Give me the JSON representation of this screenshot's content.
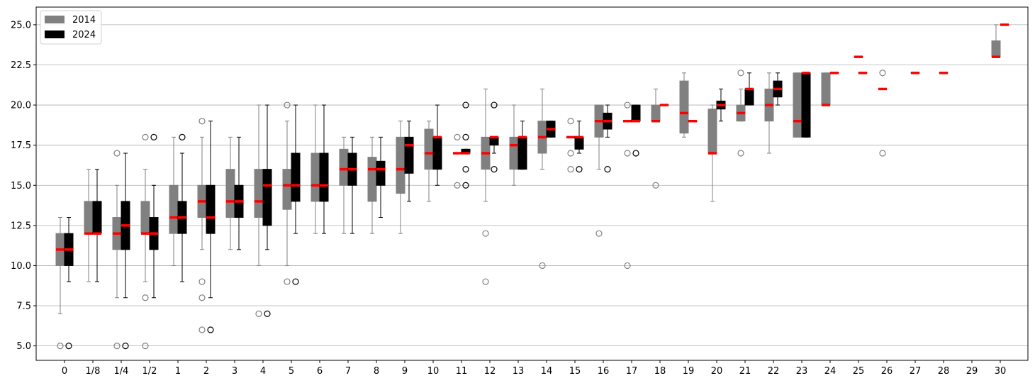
{
  "chart_data": {
    "type": "box",
    "categories": [
      "0",
      "1/8",
      "1/4",
      "1/2",
      "1",
      "2",
      "3",
      "4",
      "5",
      "6",
      "7",
      "8",
      "9",
      "10",
      "11",
      "12",
      "13",
      "14",
      "15",
      "16",
      "17",
      "18",
      "19",
      "20",
      "21",
      "22",
      "23",
      "24",
      "25",
      "26",
      "27",
      "28",
      "29",
      "30"
    ],
    "title": "",
    "xlabel": "",
    "ylabel": "",
    "ylim": [
      4.1,
      26.1
    ],
    "yticks": [
      5.0,
      7.5,
      10.0,
      12.5,
      15.0,
      17.5,
      20.0,
      22.5,
      25.0
    ],
    "grid": "horizontal",
    "legend_position": "top-left",
    "median_color": "#ff0000",
    "series": [
      {
        "name": "2014",
        "color": "#808080",
        "boxes": [
          {
            "cat": "0",
            "whislo": 7,
            "q1": 10,
            "med": 11,
            "q3": 12,
            "whishi": 13,
            "fliers": [
              5
            ]
          },
          {
            "cat": "1/8",
            "whislo": 9,
            "q1": 12,
            "med": 12,
            "q3": 14,
            "whishi": 16,
            "fliers": []
          },
          {
            "cat": "1/4",
            "whislo": 8,
            "q1": 11,
            "med": 12,
            "q3": 13,
            "whishi": 15,
            "fliers": [
              5,
              17
            ]
          },
          {
            "cat": "1/2",
            "whislo": 9,
            "q1": 12,
            "med": 12,
            "q3": 14,
            "whishi": 16,
            "fliers": [
              5,
              8,
              18
            ]
          },
          {
            "cat": "1",
            "whislo": 10,
            "q1": 12,
            "med": 13,
            "q3": 15,
            "whishi": 18,
            "fliers": []
          },
          {
            "cat": "2",
            "whislo": 11,
            "q1": 13,
            "med": 14,
            "q3": 15,
            "whishi": 18,
            "fliers": [
              6,
              8,
              9,
              19
            ]
          },
          {
            "cat": "3",
            "whislo": 11,
            "q1": 13,
            "med": 14,
            "q3": 16,
            "whishi": 18,
            "fliers": []
          },
          {
            "cat": "4",
            "whislo": 10,
            "q1": 13,
            "med": 14,
            "q3": 16,
            "whishi": 20,
            "fliers": [
              7
            ]
          },
          {
            "cat": "5",
            "whislo": 10,
            "q1": 13.5,
            "med": 15,
            "q3": 16,
            "whishi": 19,
            "fliers": [
              9,
              20
            ]
          },
          {
            "cat": "6",
            "whislo": 12,
            "q1": 14,
            "med": 15,
            "q3": 17,
            "whishi": 20,
            "fliers": []
          },
          {
            "cat": "7",
            "whislo": 12,
            "q1": 15,
            "med": 16,
            "q3": 17.25,
            "whishi": 18,
            "fliers": []
          },
          {
            "cat": "8",
            "whislo": 12,
            "q1": 14,
            "med": 16,
            "q3": 16.75,
            "whishi": 18,
            "fliers": []
          },
          {
            "cat": "9",
            "whislo": 12,
            "q1": 14.5,
            "med": 16,
            "q3": 18,
            "whishi": 19,
            "fliers": []
          },
          {
            "cat": "10",
            "whislo": 14,
            "q1": 16,
            "med": 17,
            "q3": 18.5,
            "whishi": 19,
            "fliers": []
          },
          {
            "cat": "11",
            "whislo": 17,
            "q1": 17,
            "med": 17,
            "q3": 17,
            "whishi": 17,
            "fliers": [
              15,
              18
            ]
          },
          {
            "cat": "12",
            "whislo": 14,
            "q1": 16,
            "med": 17,
            "q3": 18,
            "whishi": 21,
            "fliers": [
              9,
              12
            ]
          },
          {
            "cat": "13",
            "whislo": 15,
            "q1": 16,
            "med": 17.5,
            "q3": 18,
            "whishi": 20,
            "fliers": []
          },
          {
            "cat": "14",
            "whislo": 16,
            "q1": 17,
            "med": 18,
            "q3": 19,
            "whishi": 21,
            "fliers": [
              10
            ]
          },
          {
            "cat": "15",
            "whislo": 18,
            "q1": 18,
            "med": 18,
            "q3": 18,
            "whishi": 18,
            "fliers": [
              16,
              17,
              19
            ]
          },
          {
            "cat": "16",
            "whislo": 16,
            "q1": 18,
            "med": 19,
            "q3": 20,
            "whishi": 20,
            "fliers": [
              12
            ]
          },
          {
            "cat": "17",
            "whislo": 19,
            "q1": 19,
            "med": 19,
            "q3": 19,
            "whishi": 19,
            "fliers": [
              10,
              17,
              20
            ]
          },
          {
            "cat": "18",
            "whislo": 19,
            "q1": 19,
            "med": 19,
            "q3": 20,
            "whishi": 21,
            "fliers": [
              15
            ]
          },
          {
            "cat": "19",
            "whislo": 18,
            "q1": 18.25,
            "med": 19.5,
            "q3": 21.5,
            "whishi": 22,
            "fliers": []
          },
          {
            "cat": "20",
            "whislo": 14,
            "q1": 17,
            "med": 17,
            "q3": 19.75,
            "whishi": 20,
            "fliers": []
          },
          {
            "cat": "21",
            "whislo": 19,
            "q1": 19,
            "med": 19.5,
            "q3": 20,
            "whishi": 21,
            "fliers": [
              17,
              22
            ]
          },
          {
            "cat": "22",
            "whislo": 17,
            "q1": 19,
            "med": 20,
            "q3": 21,
            "whishi": 22,
            "fliers": []
          },
          {
            "cat": "23",
            "whislo": 18,
            "q1": 18,
            "med": 19,
            "q3": 22,
            "whishi": 22,
            "fliers": []
          },
          {
            "cat": "24",
            "whislo": 20,
            "q1": 20,
            "med": 20,
            "q3": 22,
            "whishi": 22,
            "fliers": []
          },
          {
            "cat": "26",
            "whislo": 21,
            "q1": 21,
            "med": 21,
            "q3": 21,
            "whishi": 21,
            "fliers": [
              17,
              22
            ]
          },
          {
            "cat": "30",
            "whislo": 23,
            "q1": 23,
            "med": 23,
            "q3": 24,
            "whishi": 25,
            "fliers": []
          }
        ]
      },
      {
        "name": "2024",
        "color": "#000000",
        "boxes": [
          {
            "cat": "0",
            "whislo": 9,
            "q1": 10,
            "med": 11,
            "q3": 12,
            "whishi": 13,
            "fliers": [
              5
            ]
          },
          {
            "cat": "1/8",
            "whislo": 9,
            "q1": 12,
            "med": 12,
            "q3": 14,
            "whishi": 16,
            "fliers": []
          },
          {
            "cat": "1/4",
            "whislo": 8,
            "q1": 11,
            "med": 12.5,
            "q3": 14,
            "whishi": 17,
            "fliers": [
              5
            ]
          },
          {
            "cat": "1/2",
            "whislo": 8,
            "q1": 11,
            "med": 12,
            "q3": 13,
            "whishi": 15,
            "fliers": [
              18
            ]
          },
          {
            "cat": "1",
            "whislo": 9,
            "q1": 12,
            "med": 13,
            "q3": 14,
            "whishi": 17,
            "fliers": [
              18
            ]
          },
          {
            "cat": "2",
            "whislo": 8,
            "q1": 12,
            "med": 13,
            "q3": 15,
            "whishi": 19,
            "fliers": [
              6
            ]
          },
          {
            "cat": "3",
            "whislo": 11,
            "q1": 13,
            "med": 14,
            "q3": 15,
            "whishi": 18,
            "fliers": []
          },
          {
            "cat": "4",
            "whislo": 11,
            "q1": 12.5,
            "med": 15,
            "q3": 16,
            "whishi": 20,
            "fliers": [
              7
            ]
          },
          {
            "cat": "5",
            "whislo": 12,
            "q1": 14,
            "med": 15,
            "q3": 17,
            "whishi": 20,
            "fliers": [
              9
            ]
          },
          {
            "cat": "6",
            "whislo": 12,
            "q1": 14,
            "med": 15,
            "q3": 17,
            "whishi": 20,
            "fliers": []
          },
          {
            "cat": "7",
            "whislo": 12,
            "q1": 15,
            "med": 16,
            "q3": 17,
            "whishi": 18,
            "fliers": []
          },
          {
            "cat": "8",
            "whislo": 13,
            "q1": 15,
            "med": 16,
            "q3": 16.5,
            "whishi": 18,
            "fliers": []
          },
          {
            "cat": "9",
            "whislo": 14,
            "q1": 15.75,
            "med": 17.5,
            "q3": 18,
            "whishi": 19,
            "fliers": []
          },
          {
            "cat": "10",
            "whislo": 15,
            "q1": 16,
            "med": 18,
            "q3": 18,
            "whishi": 20,
            "fliers": []
          },
          {
            "cat": "11",
            "whislo": 17,
            "q1": 17,
            "med": 17,
            "q3": 17.25,
            "whishi": 17.25,
            "fliers": [
              15,
              16,
              18,
              20
            ]
          },
          {
            "cat": "12",
            "whislo": 17,
            "q1": 17.5,
            "med": 18,
            "q3": 18,
            "whishi": 18,
            "fliers": [
              16,
              20
            ]
          },
          {
            "cat": "13",
            "whislo": 16,
            "q1": 16,
            "med": 18,
            "q3": 18,
            "whishi": 19,
            "fliers": []
          },
          {
            "cat": "14",
            "whislo": 18,
            "q1": 18,
            "med": 18.5,
            "q3": 19,
            "whishi": 19,
            "fliers": []
          },
          {
            "cat": "15",
            "whislo": 17,
            "q1": 17.25,
            "med": 18,
            "q3": 18,
            "whishi": 19,
            "fliers": [
              16
            ]
          },
          {
            "cat": "16",
            "whislo": 18,
            "q1": 18.5,
            "med": 19,
            "q3": 19.5,
            "whishi": 20,
            "fliers": [
              16
            ]
          },
          {
            "cat": "17",
            "whislo": 19,
            "q1": 19,
            "med": 19,
            "q3": 20,
            "whishi": 20,
            "fliers": [
              17
            ]
          },
          {
            "cat": "18",
            "whislo": 20,
            "q1": 20,
            "med": 20,
            "q3": 20,
            "whishi": 20,
            "fliers": []
          },
          {
            "cat": "19",
            "whislo": 19,
            "q1": 19,
            "med": 19,
            "q3": 19,
            "whishi": 19,
            "fliers": []
          },
          {
            "cat": "20",
            "whislo": 19,
            "q1": 19.75,
            "med": 20,
            "q3": 20.25,
            "whishi": 21,
            "fliers": []
          },
          {
            "cat": "21",
            "whislo": 20,
            "q1": 20,
            "med": 21,
            "q3": 21,
            "whishi": 22,
            "fliers": []
          },
          {
            "cat": "22",
            "whislo": 20,
            "q1": 20.5,
            "med": 21,
            "q3": 21.5,
            "whishi": 22,
            "fliers": []
          },
          {
            "cat": "23",
            "whislo": 18,
            "q1": 18,
            "med": 22,
            "q3": 22,
            "whishi": 22,
            "fliers": []
          },
          {
            "cat": "24",
            "whislo": 22,
            "q1": 22,
            "med": 22,
            "q3": 22,
            "whishi": 22,
            "fliers": []
          },
          {
            "cat": "25",
            "whislo": 22,
            "q1": 22,
            "med": 22,
            "q3": 22,
            "whishi": 22,
            "fliers": []
          },
          {
            "cat": "25",
            "whislo": 23,
            "q1": 23,
            "med": 23,
            "q3": 23,
            "whishi": 23,
            "fliers": [],
            "position": "center"
          },
          {
            "cat": "27",
            "whislo": 22,
            "q1": 22,
            "med": 22,
            "q3": 22,
            "whishi": 22,
            "fliers": [],
            "position": "center"
          },
          {
            "cat": "28",
            "whislo": 22,
            "q1": 22,
            "med": 22,
            "q3": 22,
            "whishi": 22,
            "fliers": [],
            "position": "center"
          },
          {
            "cat": "30",
            "whislo": 25,
            "q1": 25,
            "med": 25,
            "q3": 25,
            "whishi": 25,
            "fliers": []
          }
        ]
      }
    ]
  }
}
